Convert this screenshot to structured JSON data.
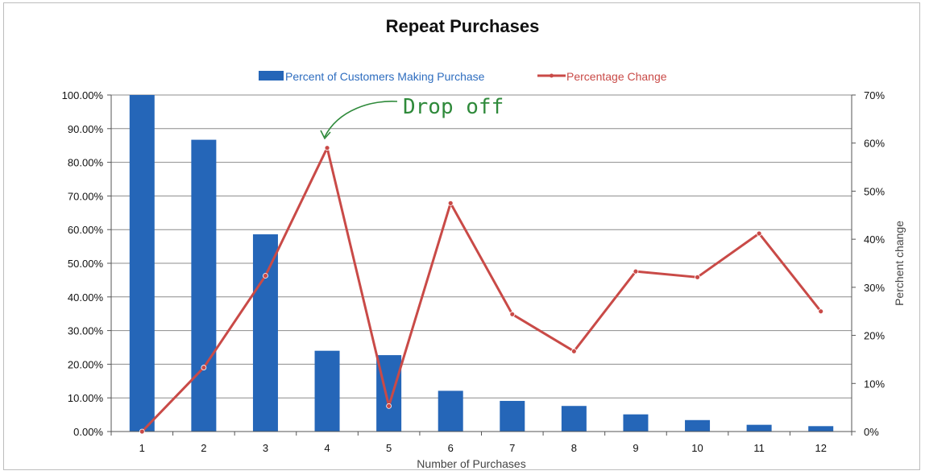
{
  "chart_data": {
    "type": "bar",
    "title": "Repeat Purchases",
    "xlabel": "Number of Purchases",
    "ylabel_right": "Perchent change",
    "categories": [
      "1",
      "2",
      "3",
      "4",
      "5",
      "6",
      "7",
      "8",
      "9",
      "10",
      "11",
      "12"
    ],
    "series": [
      {
        "name": "Percent of Customers Making Purchase",
        "kind": "bar",
        "axis": "left",
        "color": "#2566b8",
        "values": [
          100.0,
          86.7,
          58.6,
          24.0,
          22.7,
          12.1,
          9.1,
          7.6,
          5.1,
          3.4,
          2.0,
          1.6
        ]
      },
      {
        "name": "Percentage Change",
        "kind": "line",
        "axis": "right",
        "color": "#c94a47",
        "values": [
          0,
          13.3,
          32.4,
          59.0,
          5.3,
          47.5,
          24.4,
          16.7,
          33.3,
          32.1,
          41.2,
          25.0
        ]
      }
    ],
    "left_axis": {
      "ylim": [
        0,
        100
      ],
      "ticks": [
        "0.00%",
        "10.00%",
        "20.00%",
        "30.00%",
        "40.00%",
        "50.00%",
        "60.00%",
        "70.00%",
        "80.00%",
        "90.00%",
        "100.00%"
      ]
    },
    "right_axis": {
      "ylim": [
        0,
        70
      ],
      "ticks": [
        "0%",
        "10%",
        "20%",
        "30%",
        "40%",
        "50%",
        "60%",
        "70%"
      ]
    },
    "grid": true,
    "legend": "top-center",
    "annotation": {
      "text": "Drop off",
      "color": "#2f8a3b",
      "points_to_category": "4"
    }
  }
}
